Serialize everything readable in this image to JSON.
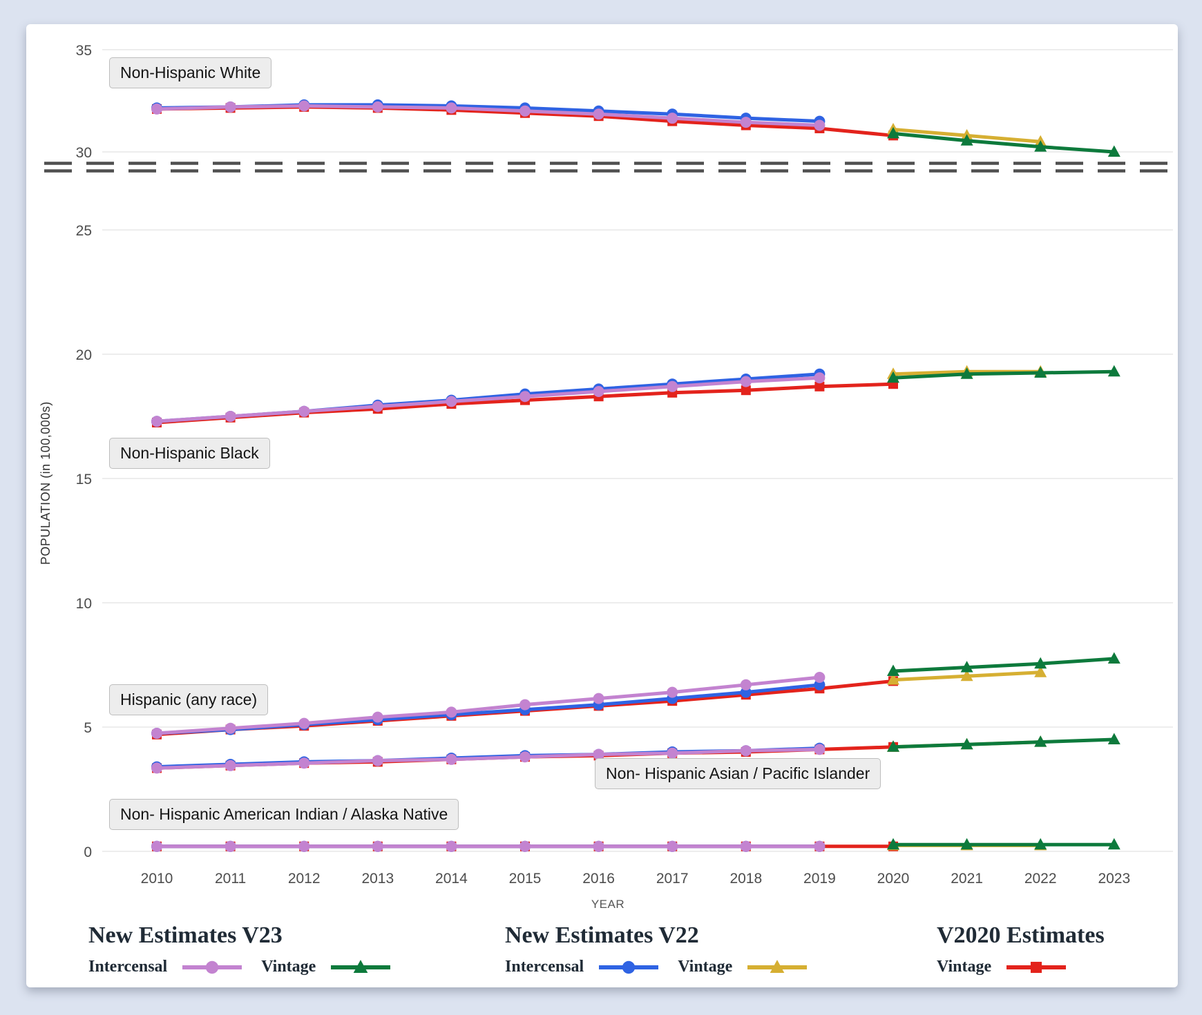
{
  "chart_data": {
    "type": "line",
    "xlabel": "YEAR",
    "ylabel": "POPULATION (in 100,000s)",
    "x_ticks": [
      2010,
      2011,
      2012,
      2013,
      2014,
      2015,
      2016,
      2017,
      2018,
      2019,
      2020,
      2021,
      2022,
      2023
    ],
    "y_ticks": [
      0,
      5,
      10,
      15,
      20,
      25,
      30,
      35
    ],
    "ylim": [
      0,
      35
    ],
    "axis_break_between": [
      25,
      30
    ],
    "grid": true,
    "series_defs": [
      {
        "id": "v23_intercensal",
        "label": "Intercensal",
        "legend_group": "New Estimates V23",
        "color": "#c383d0",
        "marker": "circle"
      },
      {
        "id": "v23_vintage",
        "label": "Vintage",
        "legend_group": "New Estimates V23",
        "color": "#0d7a3c",
        "marker": "triangle"
      },
      {
        "id": "v22_intercensal",
        "label": "Intercensal",
        "legend_group": "New Estimates V22",
        "color": "#2f63e3",
        "marker": "circle"
      },
      {
        "id": "v22_vintage",
        "label": "Vintage",
        "legend_group": "New Estimates V22",
        "color": "#d6af32",
        "marker": "triangle"
      },
      {
        "id": "v2020_vintage",
        "label": "Vintage",
        "legend_group": "V2020 Estimates",
        "color": "#e3231c",
        "marker": "square"
      }
    ],
    "groups": [
      {
        "id": "nh_white",
        "label": "Non-Hispanic White",
        "series": {
          "v2020_vintage": {
            "start_year": 2010,
            "values": [
              32.1,
              32.15,
              32.2,
              32.15,
              32.05,
              31.9,
              31.75,
              31.5,
              31.3,
              31.15,
              30.8
            ]
          },
          "v22_intercensal": {
            "start_year": 2010,
            "values": [
              32.15,
              32.2,
              32.3,
              32.3,
              32.25,
              32.15,
              32.0,
              31.85,
              31.65,
              31.5
            ]
          },
          "v23_intercensal": {
            "start_year": 2010,
            "values": [
              32.1,
              32.2,
              32.25,
              32.2,
              32.15,
              32.0,
              31.85,
              31.65,
              31.45,
              31.3
            ]
          },
          "v22_vintage": {
            "start_year": 2020,
            "values": [
              31.1,
              30.8,
              30.5
            ]
          },
          "v23_vintage": {
            "start_year": 2020,
            "values": [
              30.9,
              30.55,
              30.25,
              30.0
            ]
          }
        }
      },
      {
        "id": "nh_black",
        "label": "Non-Hispanic Black",
        "series": {
          "v2020_vintage": {
            "start_year": 2010,
            "values": [
              17.25,
              17.45,
              17.65,
              17.8,
              18.0,
              18.15,
              18.3,
              18.45,
              18.55,
              18.7,
              18.8
            ]
          },
          "v22_intercensal": {
            "start_year": 2010,
            "values": [
              17.3,
              17.5,
              17.7,
              17.95,
              18.15,
              18.4,
              18.6,
              18.8,
              19.0,
              19.2
            ]
          },
          "v23_intercensal": {
            "start_year": 2010,
            "values": [
              17.3,
              17.5,
              17.7,
              17.9,
              18.1,
              18.3,
              18.5,
              18.7,
              18.9,
              19.05
            ]
          },
          "v22_vintage": {
            "start_year": 2020,
            "values": [
              19.2,
              19.3,
              19.3
            ]
          },
          "v23_vintage": {
            "start_year": 2020,
            "values": [
              19.05,
              19.2,
              19.25,
              19.3
            ]
          }
        }
      },
      {
        "id": "hispanic",
        "label": "Hispanic (any race)",
        "series": {
          "v2020_vintage": {
            "start_year": 2010,
            "values": [
              4.7,
              4.9,
              5.05,
              5.25,
              5.45,
              5.65,
              5.85,
              6.05,
              6.3,
              6.55,
              6.85
            ]
          },
          "v22_intercensal": {
            "start_year": 2010,
            "values": [
              4.75,
              4.9,
              5.1,
              5.3,
              5.5,
              5.7,
              5.9,
              6.15,
              6.4,
              6.7
            ]
          },
          "v23_intercensal": {
            "start_year": 2010,
            "values": [
              4.75,
              4.95,
              5.15,
              5.4,
              5.6,
              5.9,
              6.15,
              6.4,
              6.7,
              7.0
            ]
          },
          "v22_vintage": {
            "start_year": 2020,
            "values": [
              6.9,
              7.05,
              7.2
            ]
          },
          "v23_vintage": {
            "start_year": 2020,
            "values": [
              7.25,
              7.4,
              7.55,
              7.75
            ]
          }
        }
      },
      {
        "id": "nh_asian_pi",
        "label": "Non- Hispanic Asian / Pacific Islander",
        "series": {
          "v2020_vintage": {
            "start_year": 2010,
            "values": [
              3.35,
              3.45,
              3.55,
              3.6,
              3.7,
              3.8,
              3.85,
              3.95,
              4.0,
              4.1,
              4.2
            ]
          },
          "v22_intercensal": {
            "start_year": 2010,
            "values": [
              3.4,
              3.5,
              3.6,
              3.65,
              3.75,
              3.85,
              3.9,
              4.0,
              4.05,
              4.15
            ]
          },
          "v23_intercensal": {
            "start_year": 2010,
            "values": [
              3.35,
              3.45,
              3.55,
              3.65,
              3.7,
              3.8,
              3.9,
              3.95,
              4.05,
              4.1
            ]
          },
          "v22_vintage": {
            "start_year": 2020,
            "values": [
              4.2,
              4.3,
              4.4
            ]
          },
          "v23_vintage": {
            "start_year": 2020,
            "values": [
              4.2,
              4.3,
              4.4,
              4.5
            ]
          }
        }
      },
      {
        "id": "nh_aian",
        "label": "Non- Hispanic American Indian / Alaska Native",
        "series": {
          "v2020_vintage": {
            "start_year": 2010,
            "values": [
              0.2,
              0.2,
              0.2,
              0.2,
              0.2,
              0.2,
              0.2,
              0.2,
              0.2,
              0.2,
              0.2
            ]
          },
          "v22_intercensal": {
            "start_year": 2010,
            "values": [
              0.2,
              0.2,
              0.2,
              0.2,
              0.2,
              0.2,
              0.2,
              0.2,
              0.2,
              0.2
            ]
          },
          "v23_intercensal": {
            "start_year": 2010,
            "values": [
              0.2,
              0.2,
              0.2,
              0.2,
              0.2,
              0.2,
              0.2,
              0.2,
              0.2,
              0.2
            ]
          },
          "v22_vintage": {
            "start_year": 2020,
            "values": [
              0.24,
              0.24,
              0.24
            ]
          },
          "v23_vintage": {
            "start_year": 2020,
            "values": [
              0.27,
              0.27,
              0.27,
              0.27
            ]
          }
        }
      }
    ]
  },
  "legend": {
    "groups": [
      {
        "title": "New Estimates V23",
        "items": [
          {
            "label": "Intercensal",
            "series": "v23_intercensal"
          },
          {
            "label": "Vintage",
            "series": "v23_vintage"
          }
        ]
      },
      {
        "title": "New Estimates V22",
        "items": [
          {
            "label": "Intercensal",
            "series": "v22_intercensal"
          },
          {
            "label": "Vintage",
            "series": "v22_vintage"
          }
        ]
      },
      {
        "title": "V2020 Estimates",
        "items": [
          {
            "label": "Vintage",
            "series": "v2020_vintage"
          }
        ]
      }
    ]
  },
  "colors": {
    "page_background": "#dce3f0",
    "card_background": "#ffffff",
    "gridline": "#e7e7e7",
    "axis_break": "#4f4f4f",
    "tick_text": "#4d4d4d"
  }
}
